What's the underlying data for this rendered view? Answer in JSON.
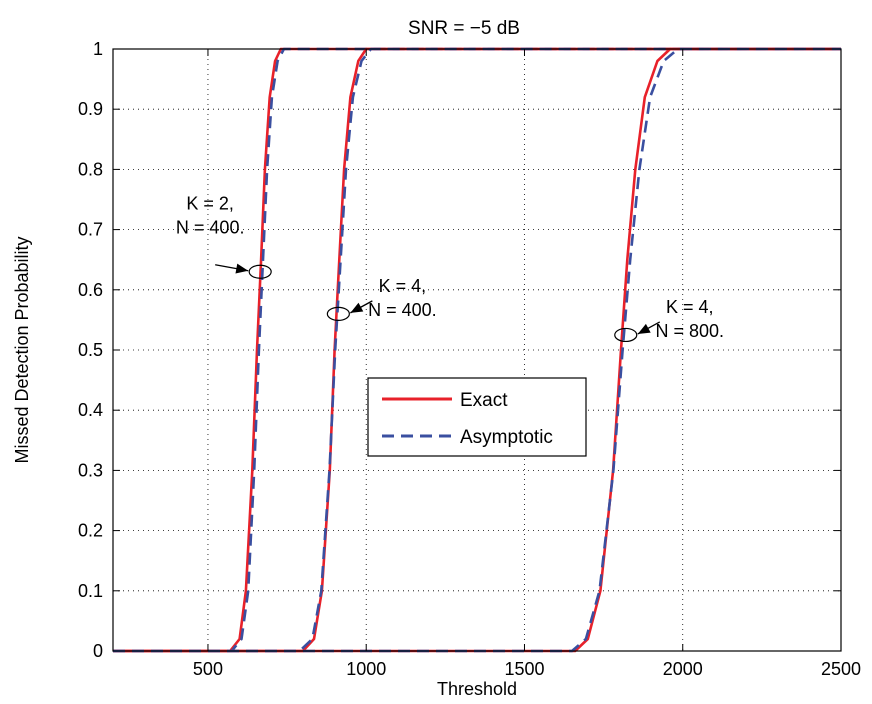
{
  "chart_data": {
    "type": "line",
    "title": "SNR = −5 dB",
    "xlabel": "Threshold",
    "ylabel": "Missed Detection Probability",
    "xlim": [
      200,
      2500
    ],
    "ylim": [
      0,
      1
    ],
    "xticks": [
      500,
      1000,
      1500,
      2000,
      2500
    ],
    "xtick_labels": [
      "500",
      "1000",
      "1500",
      "2000",
      "2500"
    ],
    "yticks": [
      0,
      0.1,
      0.2,
      0.3,
      0.4,
      0.5,
      0.6,
      0.7,
      0.8,
      0.9,
      1
    ],
    "ytick_labels": [
      "0",
      "0.1",
      "0.2",
      "0.3",
      "0.4",
      "0.5",
      "0.6",
      "0.7",
      "0.8",
      "0.9",
      "1"
    ],
    "grid": true,
    "legend_position": "center",
    "legend": [
      {
        "label": "Exact",
        "color": "#e8212a",
        "style": "solid"
      },
      {
        "label": "Asymptotic",
        "color": "#3a4fa0",
        "style": "dashed"
      }
    ],
    "series": [
      {
        "group": "K = 2, N = 400",
        "style": "exact",
        "color": "#e8212a",
        "x": [
          200,
          570,
          600,
          620,
          640,
          655,
          668,
          680,
          695,
          712,
          730,
          760,
          2500
        ],
        "y": [
          0,
          0,
          0.02,
          0.1,
          0.3,
          0.5,
          0.65,
          0.8,
          0.92,
          0.98,
          1,
          1,
          1
        ]
      },
      {
        "group": "K = 2, N = 400",
        "style": "asymptotic",
        "color": "#3a4fa0",
        "x": [
          200,
          575,
          606,
          627,
          646,
          661,
          674,
          687,
          702,
          720,
          740,
          770,
          2500
        ],
        "y": [
          0,
          0,
          0.02,
          0.1,
          0.3,
          0.5,
          0.65,
          0.8,
          0.92,
          0.98,
          1,
          1,
          1
        ]
      },
      {
        "group": "K = 4, N = 400",
        "style": "exact",
        "color": "#e8212a",
        "x": [
          200,
          800,
          835,
          860,
          885,
          900,
          915,
          930,
          950,
          975,
          1000,
          1030,
          2500
        ],
        "y": [
          0,
          0,
          0.02,
          0.1,
          0.3,
          0.5,
          0.65,
          0.8,
          0.92,
          0.98,
          1,
          1,
          1
        ]
      },
      {
        "group": "K = 4, N = 400",
        "style": "asymptotic",
        "color": "#3a4fa0",
        "x": [
          200,
          790,
          830,
          858,
          884,
          902,
          919,
          936,
          958,
          985,
          1015,
          1050,
          2500
        ],
        "y": [
          0,
          0,
          0.02,
          0.1,
          0.3,
          0.5,
          0.65,
          0.8,
          0.92,
          0.98,
          1,
          1,
          1
        ]
      },
      {
        "group": "K = 4, N = 800",
        "style": "exact",
        "color": "#e8212a",
        "x": [
          200,
          1660,
          1700,
          1740,
          1780,
          1805,
          1825,
          1850,
          1880,
          1920,
          1960,
          2010,
          2500
        ],
        "y": [
          0,
          0,
          0.02,
          0.1,
          0.3,
          0.5,
          0.65,
          0.8,
          0.92,
          0.98,
          1,
          1,
          1
        ]
      },
      {
        "group": "K = 4, N = 800",
        "style": "asymptotic",
        "color": "#3a4fa0",
        "x": [
          200,
          1650,
          1694,
          1737,
          1781,
          1810,
          1834,
          1863,
          1897,
          1940,
          1985,
          2040,
          2500
        ],
        "y": [
          0,
          0,
          0.02,
          0.1,
          0.3,
          0.5,
          0.65,
          0.8,
          0.92,
          0.98,
          1,
          1,
          1
        ]
      }
    ],
    "annotations": [
      {
        "lines": [
          "K = 2,",
          "N = 400."
        ],
        "point": [
          665,
          0.63
        ],
        "text_side": "left"
      },
      {
        "lines": [
          "K = 4,",
          "N = 400."
        ],
        "point": [
          912,
          0.56
        ],
        "text_side": "right"
      },
      {
        "lines": [
          "K = 4,",
          "N = 800."
        ],
        "point": [
          1820,
          0.525
        ],
        "text_side": "right"
      }
    ]
  }
}
